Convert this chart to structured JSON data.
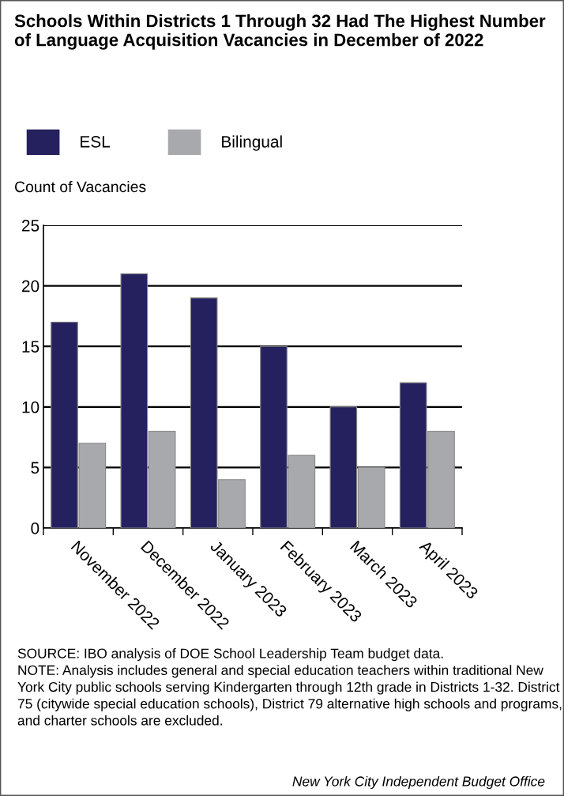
{
  "chart_data": {
    "type": "bar",
    "title": "Schools Within Districts 1 Through 32 Had The Highest Number of Language Acquisition Vacancies in December of 2022",
    "ylabel": "Count of Vacancies",
    "categories": [
      "November 2022",
      "December 2022",
      "January 2023",
      "February 2023",
      "March 2023",
      "April 2023"
    ],
    "series": [
      {
        "name": "ESL",
        "color": "#25215f",
        "values": [
          17,
          21,
          19,
          15,
          10,
          12
        ]
      },
      {
        "name": "Bilingual",
        "color": "#a8a9ac",
        "values": [
          7,
          8,
          4,
          6,
          5,
          8
        ]
      }
    ],
    "ylim": [
      0,
      25
    ],
    "yticks": [
      0,
      5,
      10,
      15,
      20,
      25
    ],
    "grid": "y",
    "legend": "top left",
    "annotations": [
      "SOURCE: IBO analysis of DOE School Leadership Team budget data.\nNOTE: Analysis includes general and special education teachers within traditional New York City public schools serving Kindergarten through 12th grade in Districts 1-32. District 75 (citywide special education schools), District 79 alternative high schools and programs, and charter schools are excluded.",
      "New York City Independent Budget Office"
    ]
  }
}
